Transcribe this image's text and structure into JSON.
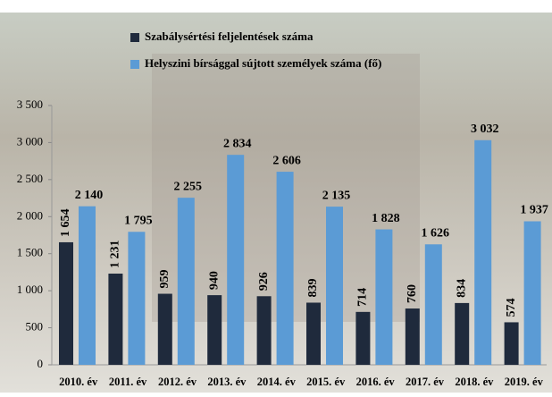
{
  "chart_data": {
    "type": "bar",
    "categories": [
      "2010. év",
      "2011. év",
      "2012. év",
      "2013. év",
      "2014. év",
      "2015. év",
      "2016. év",
      "2017. év",
      "2018. év",
      "2019. év"
    ],
    "series": [
      {
        "name": "Szabálysértési feljelentések száma",
        "color": "#1f2a3c",
        "values": [
          1654,
          1231,
          959,
          940,
          926,
          839,
          714,
          760,
          834,
          574
        ],
        "value_labels": [
          "1 654",
          "1 231",
          "959",
          "940",
          "926",
          "839",
          "714",
          "760",
          "834",
          "574"
        ]
      },
      {
        "name": "Helyszini bírsággal sújtott személyek száma (fő)",
        "color": "#5b9bd5",
        "values": [
          2140,
          1795,
          2255,
          2834,
          2606,
          2135,
          1828,
          1626,
          3032,
          1937
        ],
        "value_labels": [
          "2 140",
          "1 795",
          "2 255",
          "2 834",
          "2 606",
          "2 135",
          "1 828",
          "1 626",
          "3 032",
          "1 937"
        ]
      }
    ],
    "ylim": [
      0,
      3500
    ],
    "yticks": [
      0,
      500,
      {
        "value": 1000,
        "label": "1 000"
      },
      {
        "value": 1500,
        "label": "1 500"
      },
      {
        "value": 2000,
        "label": "2 000"
      },
      {
        "value": 2500,
        "label": "2 500"
      },
      {
        "value": 3000,
        "label": "3 000"
      },
      {
        "value": 3500,
        "label": "3 500"
      }
    ],
    "legend": "top-left"
  }
}
